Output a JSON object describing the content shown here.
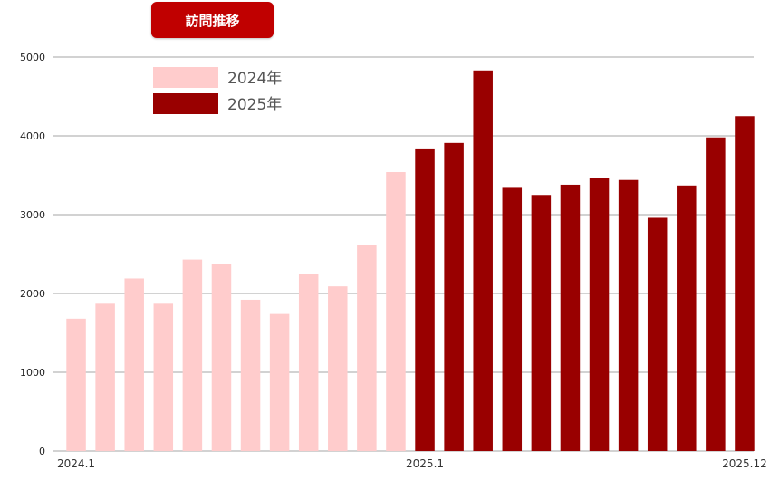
{
  "title": "訪問推移",
  "colors": {
    "series_2024": "#ffcccc",
    "series_2025": "#990000",
    "badge": "#c00000",
    "grid": "#888888"
  },
  "chart_data": {
    "type": "bar",
    "title": "訪問推移",
    "ylim": [
      0,
      5000
    ],
    "yticks": [
      "0",
      "1000",
      "2000",
      "3000",
      "4000",
      "5000"
    ],
    "xtick_labels": [
      {
        "index": 0,
        "label": "2024.1"
      },
      {
        "index": 12,
        "label": "2025.1"
      },
      {
        "index": 23,
        "label": "2025.12"
      }
    ],
    "grid": true,
    "legend_position": "top-left",
    "series": [
      {
        "name": "2024年",
        "color": "#ffcccc",
        "values": [
          1680,
          1870,
          2190,
          1870,
          2430,
          2370,
          1920,
          1740,
          2250,
          2090,
          2610,
          3540
        ]
      },
      {
        "name": "2025年",
        "color": "#990000",
        "values": [
          3840,
          3910,
          4830,
          3340,
          3250,
          3380,
          3460,
          3440,
          2960,
          3370,
          3980,
          4250
        ]
      }
    ]
  }
}
